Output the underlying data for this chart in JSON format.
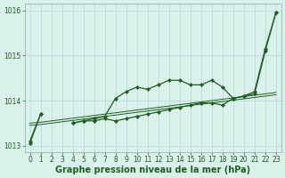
{
  "background_color": "#daf0eb",
  "grid_color": "#b8ddd8",
  "line_color": "#1e5e1e",
  "x_values": [
    0,
    1,
    2,
    3,
    4,
    5,
    6,
    7,
    8,
    9,
    10,
    11,
    12,
    13,
    14,
    15,
    16,
    17,
    18,
    19,
    20,
    21,
    22,
    23
  ],
  "series_main1": [
    1013.05,
    1013.7,
    null,
    null,
    1013.5,
    1013.55,
    1013.55,
    1013.6,
    1013.55,
    1013.6,
    1013.65,
    1013.7,
    1013.75,
    1013.8,
    1013.85,
    1013.9,
    1013.95,
    1013.95,
    1013.9,
    1014.05,
    1014.1,
    1014.15,
    1015.1,
    1015.95
  ],
  "series_main2": [
    1013.1,
    1013.7,
    null,
    null,
    1013.5,
    1013.55,
    1013.6,
    1013.65,
    1014.05,
    1014.2,
    1014.3,
    1014.25,
    1014.35,
    1014.45,
    1014.45,
    1014.35,
    1014.35,
    1014.45,
    1014.3,
    1014.05,
    1014.1,
    1014.2,
    1015.15,
    1015.95
  ],
  "series_trend1": [
    1013.45,
    1013.47,
    1013.5,
    1013.53,
    1013.56,
    1013.59,
    1013.62,
    1013.65,
    1013.68,
    1013.71,
    1013.74,
    1013.77,
    1013.8,
    1013.83,
    1013.86,
    1013.89,
    1013.92,
    1013.95,
    1013.98,
    1014.01,
    1014.04,
    1014.07,
    1014.1,
    1014.13
  ],
  "series_trend2": [
    1013.5,
    1013.52,
    1013.55,
    1013.58,
    1013.61,
    1013.64,
    1013.67,
    1013.7,
    1013.73,
    1013.76,
    1013.79,
    1013.82,
    1013.85,
    1013.88,
    1013.91,
    1013.94,
    1013.97,
    1014.0,
    1014.03,
    1014.06,
    1014.09,
    1014.12,
    1014.15,
    1014.18
  ],
  "ylim": [
    1012.85,
    1016.15
  ],
  "yticks": [
    1013,
    1014,
    1015,
    1016
  ],
  "xlabel": "Graphe pression niveau de la mer (hPa)",
  "xlabel_fontsize": 7,
  "tick_fontsize": 5.5
}
